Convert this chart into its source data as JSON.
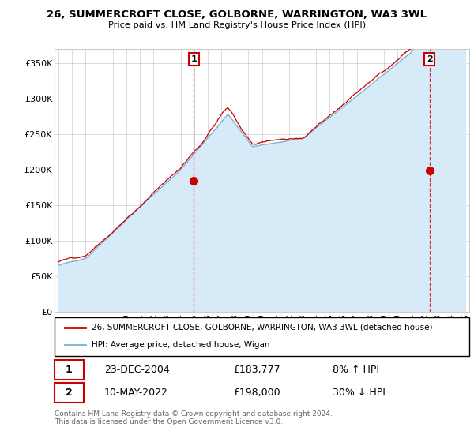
{
  "title1": "26, SUMMERCROFT CLOSE, GOLBORNE, WARRINGTON, WA3 3WL",
  "title2": "Price paid vs. HM Land Registry's House Price Index (HPI)",
  "ylabel_ticks": [
    "£0",
    "£50K",
    "£100K",
    "£150K",
    "£200K",
    "£250K",
    "£300K",
    "£350K"
  ],
  "ytick_vals": [
    0,
    50000,
    100000,
    150000,
    200000,
    250000,
    300000,
    350000
  ],
  "ylim": [
    0,
    370000
  ],
  "xlim_start": 1994.7,
  "xlim_end": 2025.3,
  "sale1_x": 2004.98,
  "sale1_y": 183777,
  "sale1_label": "1",
  "sale2_x": 2022.37,
  "sale2_y": 198000,
  "sale2_label": "2",
  "legend_line1": "26, SUMMERCROFT CLOSE, GOLBORNE, WARRINGTON, WA3 3WL (detached house)",
  "legend_line2": "HPI: Average price, detached house, Wigan",
  "table_row1_num": "1",
  "table_row1_date": "23-DEC-2004",
  "table_row1_price": "£183,777",
  "table_row1_hpi": "8% ↑ HPI",
  "table_row2_num": "2",
  "table_row2_date": "10-MAY-2022",
  "table_row2_price": "£198,000",
  "table_row2_hpi": "30% ↓ HPI",
  "footer": "Contains HM Land Registry data © Crown copyright and database right 2024.\nThis data is licensed under the Open Government Licence v3.0.",
  "red_color": "#cc0000",
  "blue_color": "#7fb3d3",
  "blue_fill": "#d6eaf8",
  "grid_color": "#cccccc",
  "bg_color": "#ffffff"
}
